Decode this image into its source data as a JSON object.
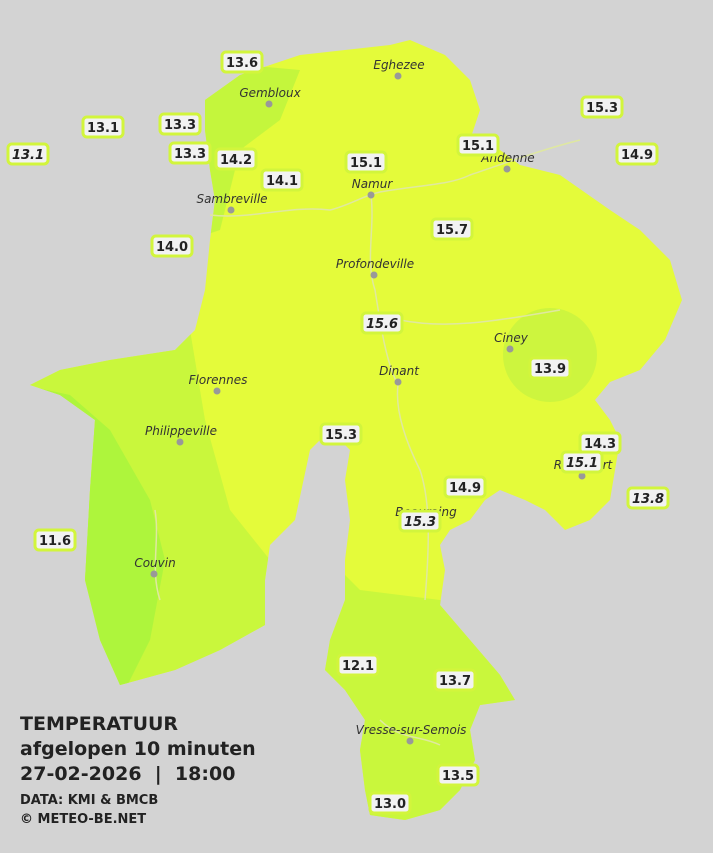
{
  "title": "TEMPERATUUR",
  "subtitle": "afgelopen 10 minuten",
  "datetime": "27-02-2026  |  18:00",
  "source": "DATA: KMI & BMCB",
  "copyright": "© METEO-BE.NET",
  "cities": [
    {
      "name": "Eghezee"
    },
    {
      "name": "Gembloux"
    },
    {
      "name": "Andenne"
    },
    {
      "name": "Namur"
    },
    {
      "name": "Sambreville"
    },
    {
      "name": "Profondeville"
    },
    {
      "name": "Ciney"
    },
    {
      "name": "Dinant"
    },
    {
      "name": "Florennes"
    },
    {
      "name": "Philippeville"
    },
    {
      "name": "Couvin"
    },
    {
      "name": "Vresse-sur-Semois"
    },
    {
      "name": "Rochefort"
    },
    {
      "name": "Beauraing"
    }
  ],
  "stations": [
    {
      "value": "13.6"
    },
    {
      "value": "13.1"
    },
    {
      "value": "13.3"
    },
    {
      "value": "13.1",
      "italic": true
    },
    {
      "value": "13.3"
    },
    {
      "value": "14.2"
    },
    {
      "value": "14.1"
    },
    {
      "value": "15.1"
    },
    {
      "value": "15.1"
    },
    {
      "value": "15.3"
    },
    {
      "value": "14.9"
    },
    {
      "value": "14.0"
    },
    {
      "value": "15.7"
    },
    {
      "value": "15.6",
      "italic": true
    },
    {
      "value": "13.9"
    },
    {
      "value": "15.3"
    },
    {
      "value": "14.3"
    },
    {
      "value": "15.1",
      "italic": true
    },
    {
      "value": "13.8",
      "italic": true
    },
    {
      "value": "14.9"
    },
    {
      "value": "15.3",
      "italic": true
    },
    {
      "value": "11.6"
    },
    {
      "value": "12.1"
    },
    {
      "value": "13.7"
    },
    {
      "value": "13.5"
    },
    {
      "value": "13.0"
    }
  ]
}
